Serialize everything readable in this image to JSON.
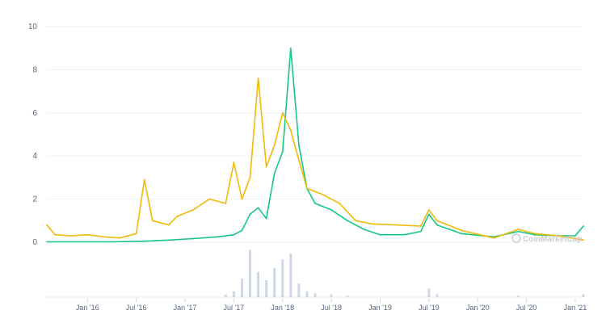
{
  "chart_data": {
    "type": "line",
    "watermark": "CoinMarketCap",
    "ylim": [
      0,
      10
    ],
    "y_ticks": [
      0,
      2,
      4,
      6,
      8,
      10
    ],
    "x_start": "2015-08",
    "x_end": "2021-02",
    "x_tick_labels": [
      {
        "date": "2016-01",
        "label": "Jan '16"
      },
      {
        "date": "2016-07",
        "label": "Jul '16"
      },
      {
        "date": "2017-01",
        "label": "Jan '17"
      },
      {
        "date": "2017-07",
        "label": "Jul '17"
      },
      {
        "date": "2018-01",
        "label": "Jan '18"
      },
      {
        "date": "2018-07",
        "label": "Jul '18"
      },
      {
        "date": "2019-01",
        "label": "Jan '19"
      },
      {
        "date": "2019-07",
        "label": "Jul '19"
      },
      {
        "date": "2020-01",
        "label": "Jan '20"
      },
      {
        "date": "2020-07",
        "label": "Jul '20"
      },
      {
        "date": "2021-01",
        "label": "Jan '21"
      }
    ],
    "grid": true,
    "legend": "none",
    "series": [
      {
        "color": "#16c784",
        "points": [
          [
            "2015-08",
            0.02
          ],
          [
            "2015-12",
            0.02
          ],
          [
            "2016-04",
            0.02
          ],
          [
            "2016-08",
            0.05
          ],
          [
            "2016-11",
            0.1
          ],
          [
            "2017-02",
            0.17
          ],
          [
            "2017-05",
            0.25
          ],
          [
            "2017-07",
            0.35
          ],
          [
            "2017-08",
            0.55
          ],
          [
            "2017-09",
            1.3
          ],
          [
            "2017-10",
            1.6
          ],
          [
            "2017-11",
            1.1
          ],
          [
            "2017-12",
            3.2
          ],
          [
            "2018-01",
            4.2
          ],
          [
            "2018-02",
            9.0
          ],
          [
            "2018-03",
            4.5
          ],
          [
            "2018-04",
            2.5
          ],
          [
            "2018-05",
            1.8
          ],
          [
            "2018-07",
            1.5
          ],
          [
            "2018-09",
            1.0
          ],
          [
            "2018-11",
            0.6
          ],
          [
            "2019-01",
            0.35
          ],
          [
            "2019-04",
            0.35
          ],
          [
            "2019-06",
            0.5
          ],
          [
            "2019-07",
            1.3
          ],
          [
            "2019-08",
            0.8
          ],
          [
            "2019-11",
            0.4
          ],
          [
            "2020-03",
            0.25
          ],
          [
            "2020-06",
            0.5
          ],
          [
            "2020-08",
            0.35
          ],
          [
            "2020-11",
            0.3
          ],
          [
            "2021-01",
            0.3
          ],
          [
            "2021-02",
            0.75
          ]
        ]
      },
      {
        "color": "#f0b90b",
        "points": [
          [
            "2015-08",
            0.8
          ],
          [
            "2015-09",
            0.35
          ],
          [
            "2015-11",
            0.3
          ],
          [
            "2016-01",
            0.35
          ],
          [
            "2016-03",
            0.25
          ],
          [
            "2016-05",
            0.2
          ],
          [
            "2016-07",
            0.4
          ],
          [
            "2016-08",
            2.9
          ],
          [
            "2016-09",
            1.0
          ],
          [
            "2016-11",
            0.8
          ],
          [
            "2016-12",
            1.2
          ],
          [
            "2017-02",
            1.5
          ],
          [
            "2017-04",
            2.0
          ],
          [
            "2017-06",
            1.8
          ],
          [
            "2017-07",
            3.7
          ],
          [
            "2017-08",
            2.0
          ],
          [
            "2017-09",
            3.0
          ],
          [
            "2017-10",
            7.6
          ],
          [
            "2017-11",
            3.5
          ],
          [
            "2017-12",
            4.5
          ],
          [
            "2018-01",
            6.0
          ],
          [
            "2018-02",
            5.2
          ],
          [
            "2018-03",
            3.8
          ],
          [
            "2018-04",
            2.5
          ],
          [
            "2018-06",
            2.2
          ],
          [
            "2018-08",
            1.8
          ],
          [
            "2018-10",
            1.0
          ],
          [
            "2018-12",
            0.85
          ],
          [
            "2019-03",
            0.8
          ],
          [
            "2019-06",
            0.75
          ],
          [
            "2019-07",
            1.5
          ],
          [
            "2019-08",
            1.0
          ],
          [
            "2019-11",
            0.55
          ],
          [
            "2020-03",
            0.2
          ],
          [
            "2020-06",
            0.6
          ],
          [
            "2020-08",
            0.4
          ],
          [
            "2020-11",
            0.3
          ],
          [
            "2021-02",
            0.1
          ]
        ]
      }
    ],
    "volume": {
      "color": "#cfd6e4",
      "bars": [
        [
          "2017-06",
          0.5
        ],
        [
          "2017-07",
          1.2
        ],
        [
          "2017-08",
          3.8
        ],
        [
          "2017-09",
          9.8
        ],
        [
          "2017-10",
          5.2
        ],
        [
          "2017-11",
          3.5
        ],
        [
          "2017-12",
          6.0
        ],
        [
          "2018-01",
          7.8
        ],
        [
          "2018-02",
          9.0
        ],
        [
          "2018-03",
          2.8
        ],
        [
          "2018-04",
          1.2
        ],
        [
          "2018-05",
          0.8
        ],
        [
          "2018-07",
          0.6
        ],
        [
          "2018-09",
          0.3
        ],
        [
          "2019-07",
          1.8
        ],
        [
          "2019-08",
          0.6
        ],
        [
          "2020-06",
          0.3
        ],
        [
          "2021-02",
          0.6
        ]
      ]
    }
  }
}
